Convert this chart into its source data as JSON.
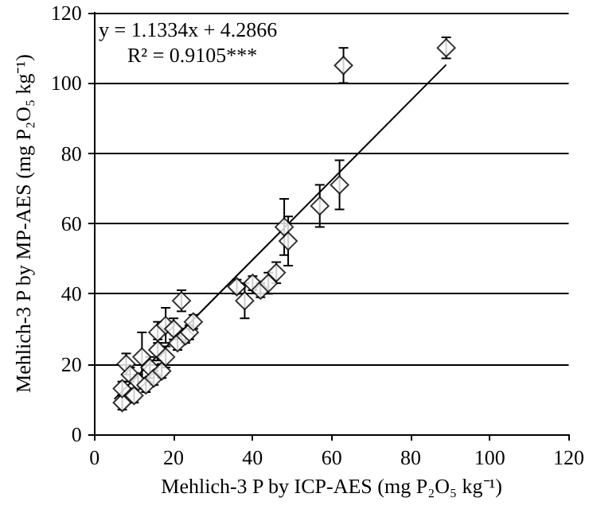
{
  "chart_data": {
    "type": "scatter",
    "xlabel": "Mehlich-3 P by ICP-AES (mg P₂O₅ kg⁻¹)",
    "ylabel": "Mehlich-3 P by MP-AES (mg P₂O₅ kg⁻¹)",
    "annotations": [
      "y = 1.1334x + 4.2866",
      "R² = 0.9105***"
    ],
    "xlim": [
      0,
      120
    ],
    "xticks": [
      0,
      20,
      40,
      60,
      80,
      100,
      120
    ],
    "ylim": [
      0,
      120
    ],
    "yticks": [
      0,
      20,
      40,
      60,
      80,
      100,
      120
    ],
    "grid": "y",
    "marker": "diamond",
    "series": [
      {
        "color": "#000000",
        "x": [
          7,
          7,
          8,
          9,
          10,
          11,
          12,
          13,
          14,
          15,
          16,
          16,
          17,
          18,
          18,
          20,
          21,
          22,
          23,
          24,
          25,
          36,
          38,
          40,
          42,
          44,
          46,
          48,
          49,
          57,
          62,
          63,
          89
        ],
        "values": [
          9,
          13,
          20,
          17,
          11,
          15,
          22,
          14,
          19,
          16,
          24,
          29,
          18,
          31,
          22,
          30,
          26,
          38,
          28,
          29,
          32,
          42,
          38,
          43,
          41,
          43,
          46,
          59,
          55,
          65,
          71,
          105,
          110
        ],
        "errors": [
          2,
          2,
          3,
          2,
          2,
          2,
          7,
          2,
          3,
          2,
          3,
          3,
          2,
          5,
          3,
          3,
          2,
          3,
          2,
          2,
          2,
          2,
          5,
          2,
          2,
          3,
          3,
          8,
          7,
          6,
          7,
          5,
          3
        ]
      },
      {
        "type": "line",
        "color": "#000000",
        "marker": "none",
        "line_style": "solid",
        "x": [
          5,
          89
        ],
        "values": [
          10.0,
          105.2
        ]
      }
    ]
  }
}
